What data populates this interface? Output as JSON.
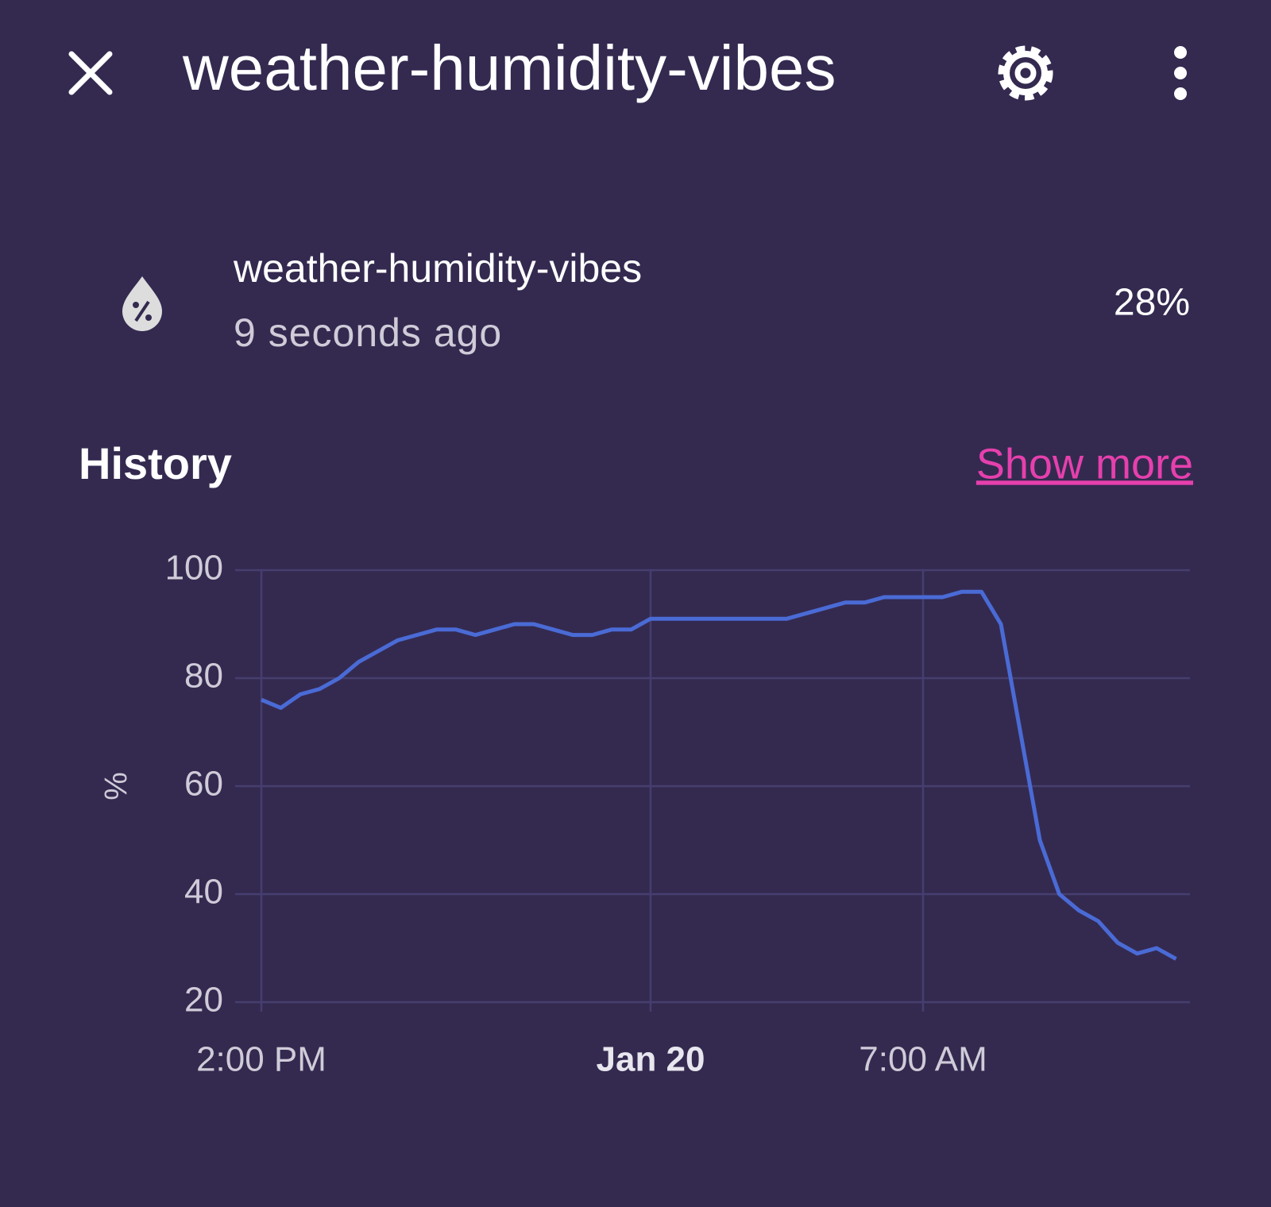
{
  "header": {
    "title": "weather-humidity-vibes"
  },
  "entity": {
    "name": "weather-humidity-vibes",
    "last_changed": "9 seconds ago",
    "state": "28%"
  },
  "history": {
    "title": "History",
    "link": "Show more"
  },
  "chart_data": {
    "type": "line",
    "y_label": "%",
    "categories": [
      "2:00 PM",
      null,
      null,
      null,
      null,
      null,
      null,
      null,
      null,
      null,
      null,
      null,
      null,
      null,
      null,
      null,
      null,
      null,
      null,
      null,
      "Jan 20",
      null,
      null,
      null,
      null,
      null,
      null,
      null,
      null,
      null,
      null,
      null,
      null,
      null,
      "7:00 AM",
      null,
      null,
      null,
      null,
      null,
      null,
      null,
      null,
      null,
      null,
      null,
      null,
      null
    ],
    "values": [
      76,
      74.5,
      77,
      78,
      80,
      83,
      85,
      87,
      88,
      89,
      89,
      88,
      89,
      90,
      90,
      89,
      88,
      88,
      89,
      89,
      91,
      91,
      91,
      91,
      91,
      91,
      91,
      91,
      92,
      93,
      94,
      94,
      95,
      95,
      95,
      95,
      96,
      96,
      90,
      70,
      50,
      40,
      37,
      35,
      31,
      29,
      30,
      28
    ],
    "color": "#4a6bd6",
    "ylim": [
      20,
      100
    ],
    "yticks": [
      20,
      40,
      60,
      80,
      100
    ],
    "grid": true
  }
}
